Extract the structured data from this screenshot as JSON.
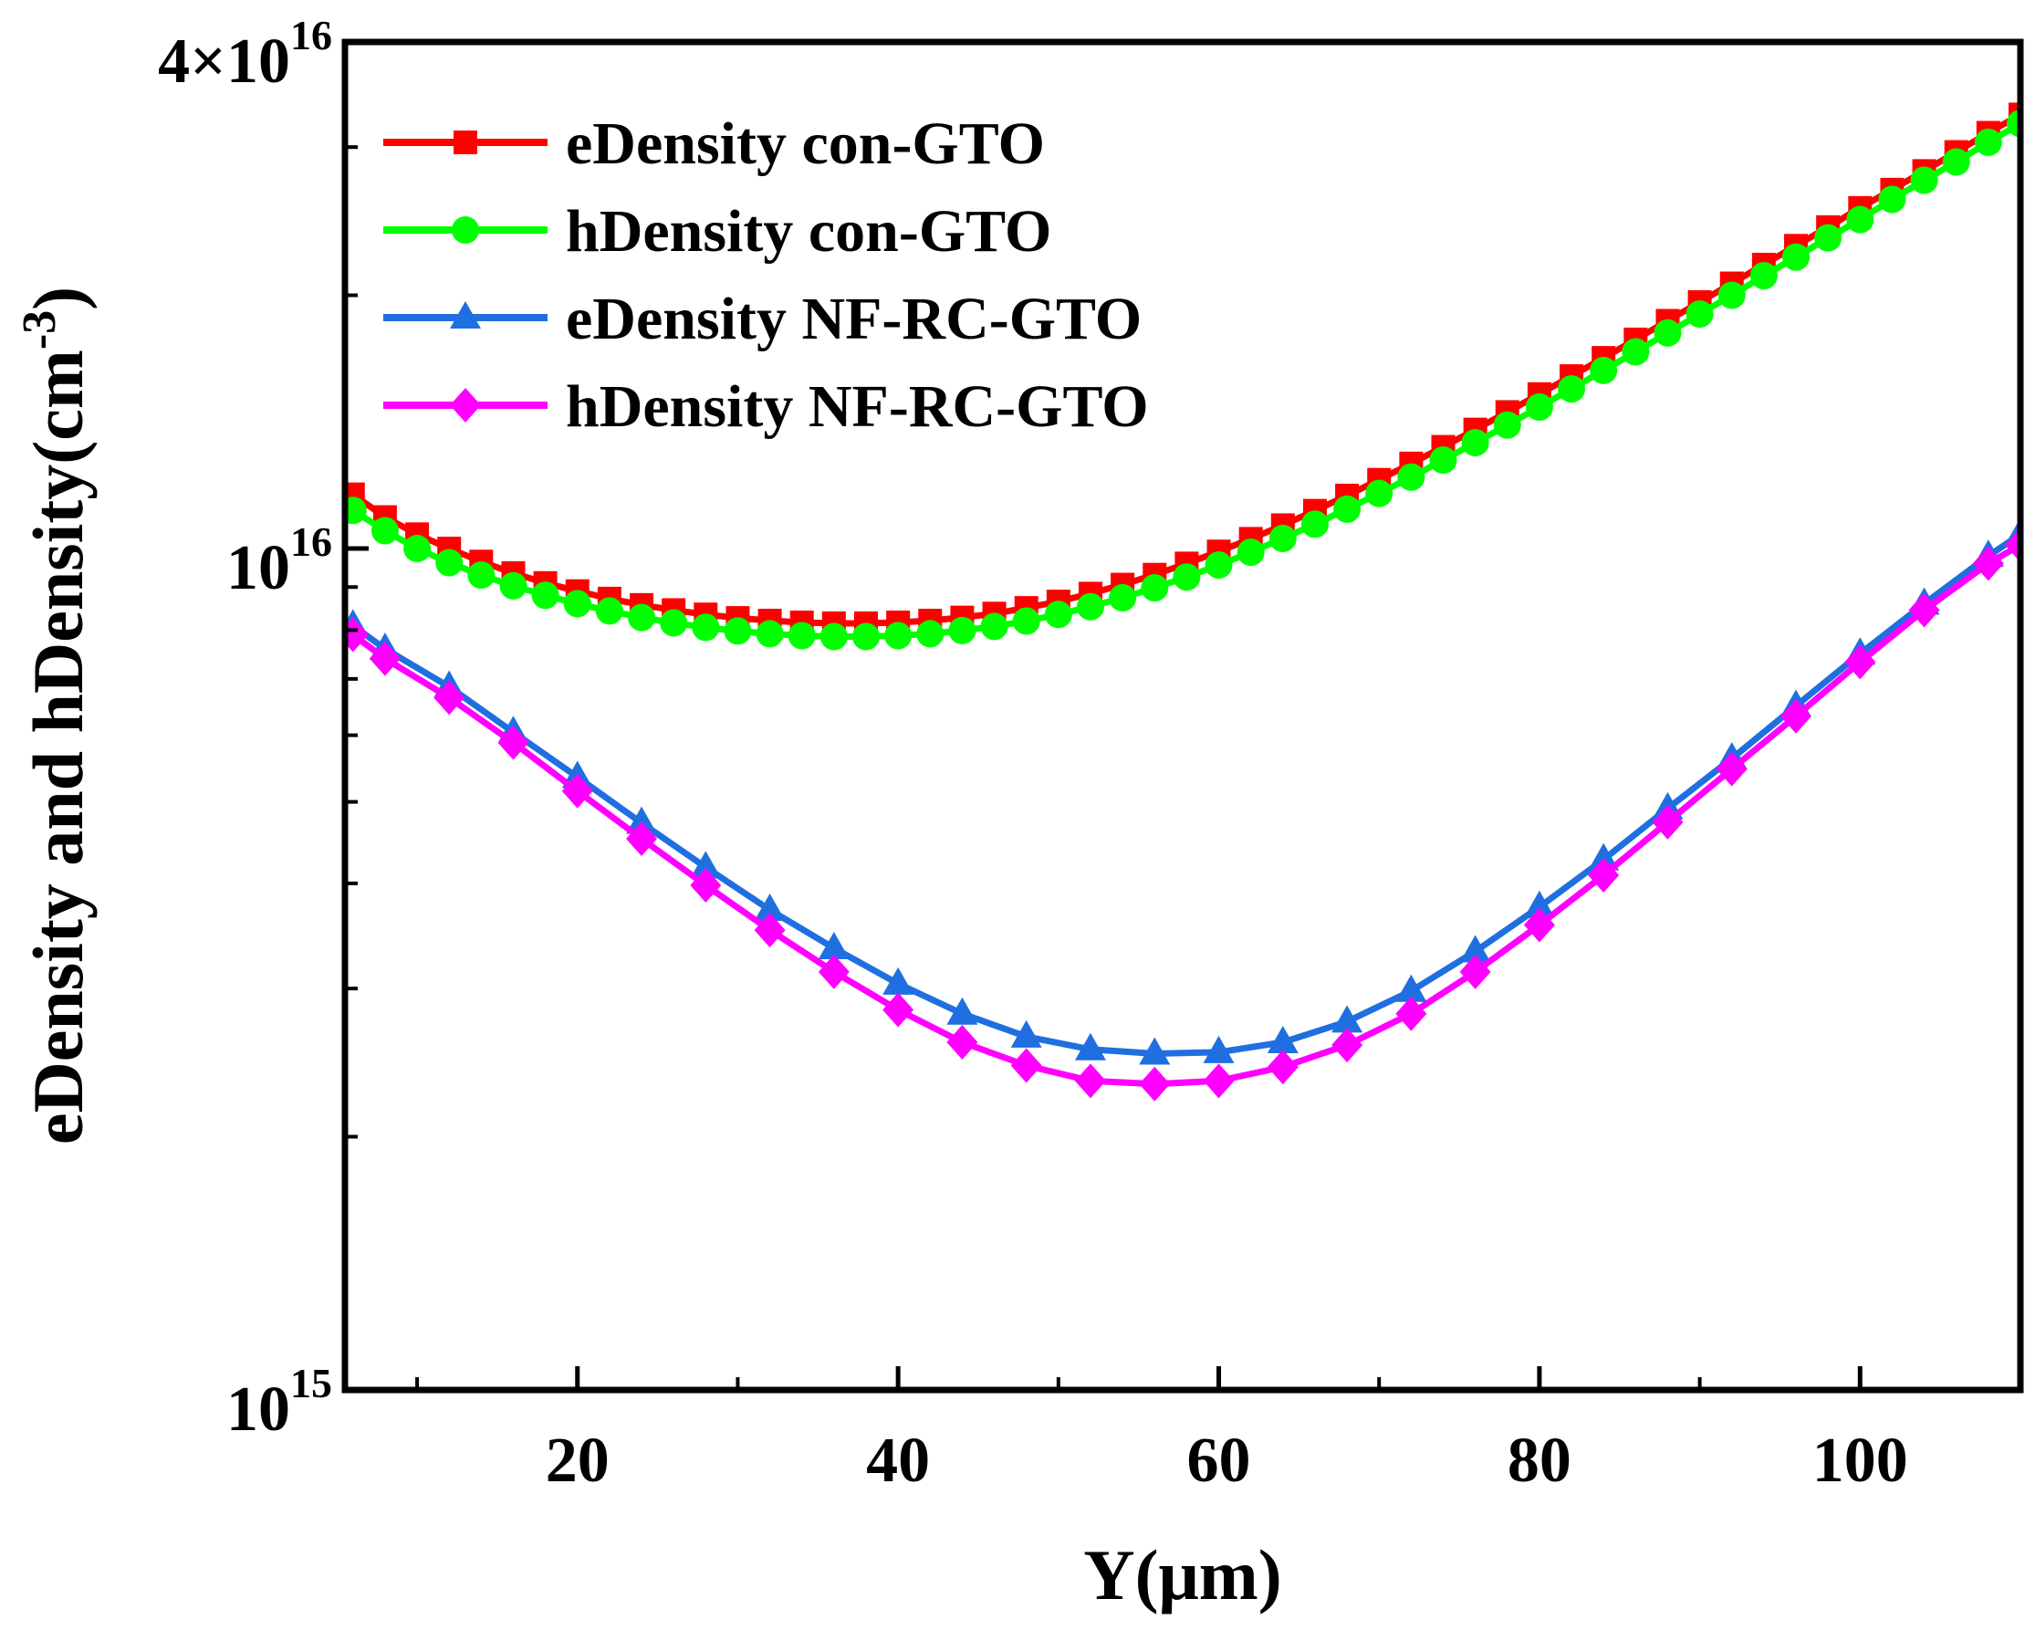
{
  "chart_data": {
    "type": "line",
    "xlabel": "Y(μm)",
    "ylabel": "eDensity and hDensity(cm",
    "ylabel_sup": "-3",
    "ylabel_close": ")",
    "x_scale": "linear",
    "y_scale": "log",
    "xlim": [
      5.5,
      110
    ],
    "ylim": [
      1000000000000000.0,
      4e+16
    ],
    "x_ticks": [
      20,
      40,
      60,
      80,
      100
    ],
    "x_tick_labels": [
      "20",
      "40",
      "60",
      "80",
      "100"
    ],
    "y_ticks": [
      {
        "value": 1000000000000000.0,
        "base": "10",
        "sup": "15"
      },
      {
        "value": 1e+16,
        "base": "10",
        "sup": "16"
      },
      {
        "value": 4e+16,
        "base": "4×10",
        "sup": "16"
      }
    ],
    "legend_position": "top-left",
    "series": [
      {
        "name": "eDensity con-GTO",
        "color": "#ff0000",
        "marker": "square",
        "x": [
          6,
          8,
          10,
          12,
          14,
          16,
          18,
          20,
          22,
          24,
          26,
          28,
          30,
          32,
          34,
          36,
          38,
          40,
          42,
          44,
          46,
          48,
          50,
          52,
          54,
          56,
          58,
          60,
          62,
          64,
          66,
          68,
          70,
          72,
          74,
          76,
          78,
          80,
          82,
          84,
          86,
          88,
          90,
          92,
          94,
          96,
          98,
          100,
          102,
          104,
          106,
          108,
          110
        ],
        "values": [
          1.16e+16,
          1.09e+16,
          1.04e+16,
          1e+16,
          9650000000000000.0,
          9350000000000000.0,
          9100000000000000.0,
          8900000000000000.0,
          8720000000000000.0,
          8570000000000000.0,
          8450000000000000.0,
          8350000000000000.0,
          8270000000000000.0,
          8210000000000000.0,
          8170000000000000.0,
          8150000000000000.0,
          8150000000000000.0,
          8170000000000000.0,
          8210000000000000.0,
          8280000000000000.0,
          8370000000000000.0,
          8500000000000000.0,
          8650000000000000.0,
          8840000000000000.0,
          9060000000000000.0,
          9310000000000000.0,
          9600000000000000.0,
          9920000000000000.0,
          1.027e+16,
          1.066e+16,
          1.109e+16,
          1.156e+16,
          1.207e+16,
          1.262e+16,
          1.321e+16,
          1.385e+16,
          1.453e+16,
          1.526e+16,
          1.603e+16,
          1.685e+16,
          1.772e+16,
          1.865e+16,
          1.963e+16,
          2.066e+16,
          2.175e+16,
          2.29e+16,
          2.41e+16,
          2.54e+16,
          2.67e+16,
          2.81e+16,
          2.96e+16,
          3.12e+16,
          3.28e+16
        ]
      },
      {
        "name": "hDensity con-GTO",
        "color": "#00ff00",
        "marker": "circle",
        "x": [
          6,
          8,
          10,
          12,
          14,
          16,
          18,
          20,
          22,
          24,
          26,
          28,
          30,
          32,
          34,
          36,
          38,
          40,
          42,
          44,
          46,
          48,
          50,
          52,
          54,
          56,
          58,
          60,
          62,
          64,
          66,
          68,
          70,
          72,
          74,
          76,
          78,
          80,
          82,
          84,
          86,
          88,
          90,
          92,
          94,
          96,
          98,
          100,
          102,
          104,
          106,
          108,
          110
        ],
        "values": [
          1.11e+16,
          1.05e+16,
          1e+16,
          9620000000000000.0,
          9300000000000000.0,
          9030000000000000.0,
          8800000000000000.0,
          8600000000000000.0,
          8430000000000000.0,
          8280000000000000.0,
          8160000000000000.0,
          8060000000000000.0,
          7980000000000000.0,
          7920000000000000.0,
          7880000000000000.0,
          7860000000000000.0,
          7860000000000000.0,
          7880000000000000.0,
          7920000000000000.0,
          7990000000000000.0,
          8080000000000000.0,
          8200000000000000.0,
          8350000000000000.0,
          8530000000000000.0,
          8740000000000000.0,
          8980000000000000.0,
          9250000000000000.0,
          9560000000000000.0,
          9900000000000000.0,
          1.028e+16,
          1.069e+16,
          1.114e+16,
          1.163e+16,
          1.216e+16,
          1.274e+16,
          1.336e+16,
          1.402e+16,
          1.473e+16,
          1.548e+16,
          1.628e+16,
          1.713e+16,
          1.804e+16,
          1.9e+16,
          2e+16,
          2.11e+16,
          2.22e+16,
          2.34e+16,
          2.46e+16,
          2.6e+16,
          2.74e+16,
          2.88e+16,
          3.04e+16,
          3.2e+16
        ]
      },
      {
        "name": "eDensity NF-RC-GTO",
        "color": "#1f6fe0",
        "marker": "triangle",
        "x": [
          6,
          8,
          12,
          16,
          20,
          24,
          28,
          32,
          36,
          40,
          44,
          48,
          52,
          56,
          60,
          64,
          68,
          72,
          76,
          80,
          84,
          88,
          92,
          96,
          100,
          104,
          108,
          110
        ],
        "values": [
          8100000000000000.0,
          7600000000000000.0,
          6850000000000000.0,
          6050000000000000.0,
          5350000000000000.0,
          4720000000000000.0,
          4180000000000000.0,
          3720000000000000.0,
          3350000000000000.0,
          3040000000000000.0,
          2800000000000000.0,
          2630000000000000.0,
          2540000000000000.0,
          2510000000000000.0,
          2520000000000000.0,
          2590000000000000.0,
          2740000000000000.0,
          2980000000000000.0,
          3320000000000000.0,
          3750000000000000.0,
          4270000000000000.0,
          4910000000000000.0,
          5630000000000000.0,
          6500000000000000.0,
          7500000000000000.0,
          8600000000000000.0,
          9800000000000000.0,
          1.04e+16
        ]
      },
      {
        "name": "hDensity NF-RC-GTO",
        "color": "#ff00ff",
        "marker": "diamond",
        "x": [
          6,
          8,
          12,
          16,
          20,
          24,
          28,
          32,
          36,
          40,
          44,
          48,
          52,
          56,
          60,
          64,
          68,
          72,
          76,
          80,
          84,
          88,
          92,
          96,
          100,
          104,
          108,
          110
        ],
        "values": [
          7900000000000000.0,
          7400000000000000.0,
          6650000000000000.0,
          5880000000000000.0,
          5150000000000000.0,
          4520000000000000.0,
          3980000000000000.0,
          3520000000000000.0,
          3140000000000000.0,
          2830000000000000.0,
          2590000000000000.0,
          2430000000000000.0,
          2330000000000000.0,
          2310000000000000.0,
          2330000000000000.0,
          2420000000000000.0,
          2570000000000000.0,
          2800000000000000.0,
          3140000000000000.0,
          3570000000000000.0,
          4090000000000000.0,
          4730000000000000.0,
          5470000000000000.0,
          6320000000000000.0,
          7330000000000000.0,
          8450000000000000.0,
          9600000000000000.0,
          1.01e+16
        ]
      }
    ]
  }
}
